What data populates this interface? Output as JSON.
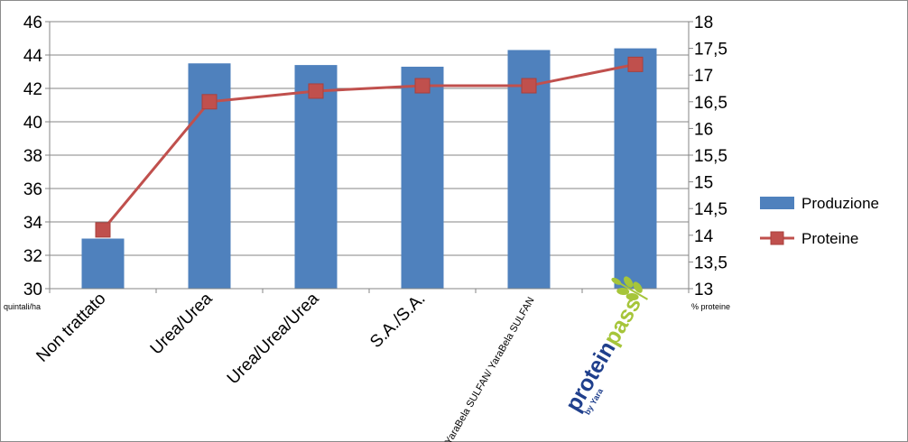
{
  "chart_data": {
    "type": "bar+line",
    "categories": [
      "Non trattato",
      "Urea/Urea",
      "Urea/Urea/Urea",
      "S.A./S.A.",
      "YaraBela SULFAN/ YaraBela SULFAN",
      "proteinpass by Yara"
    ],
    "series": [
      {
        "name": "Produzione",
        "type": "bar",
        "axis": "left",
        "color": "#4f81bd",
        "values": [
          33,
          43.5,
          43.4,
          43.3,
          44.3,
          44.4
        ]
      },
      {
        "name": "Proteine",
        "type": "line",
        "axis": "right",
        "color": "#c0504d",
        "values": [
          14.1,
          16.5,
          16.7,
          16.8,
          16.8,
          17.2
        ]
      }
    ],
    "y_left": {
      "label": "quintali/ha",
      "min": 30,
      "max": 46,
      "step": 2,
      "ticks": [
        "30",
        "32",
        "34",
        "36",
        "38",
        "40",
        "42",
        "44",
        "46"
      ]
    },
    "y_right": {
      "label": "% proteine",
      "min": 13,
      "max": 18,
      "step": 0.5,
      "ticks": [
        "13",
        "13,5",
        "14",
        "14,5",
        "15",
        "15,5",
        "16",
        "16,5",
        "17",
        "17,5",
        "18"
      ]
    },
    "grid": "horizontal",
    "legend_position": "right"
  },
  "logo": {
    "word1": "protein",
    "word2": "pass",
    "byline": "by Yara",
    "color1": "#1f3f8c",
    "color2": "#a6c53a"
  }
}
